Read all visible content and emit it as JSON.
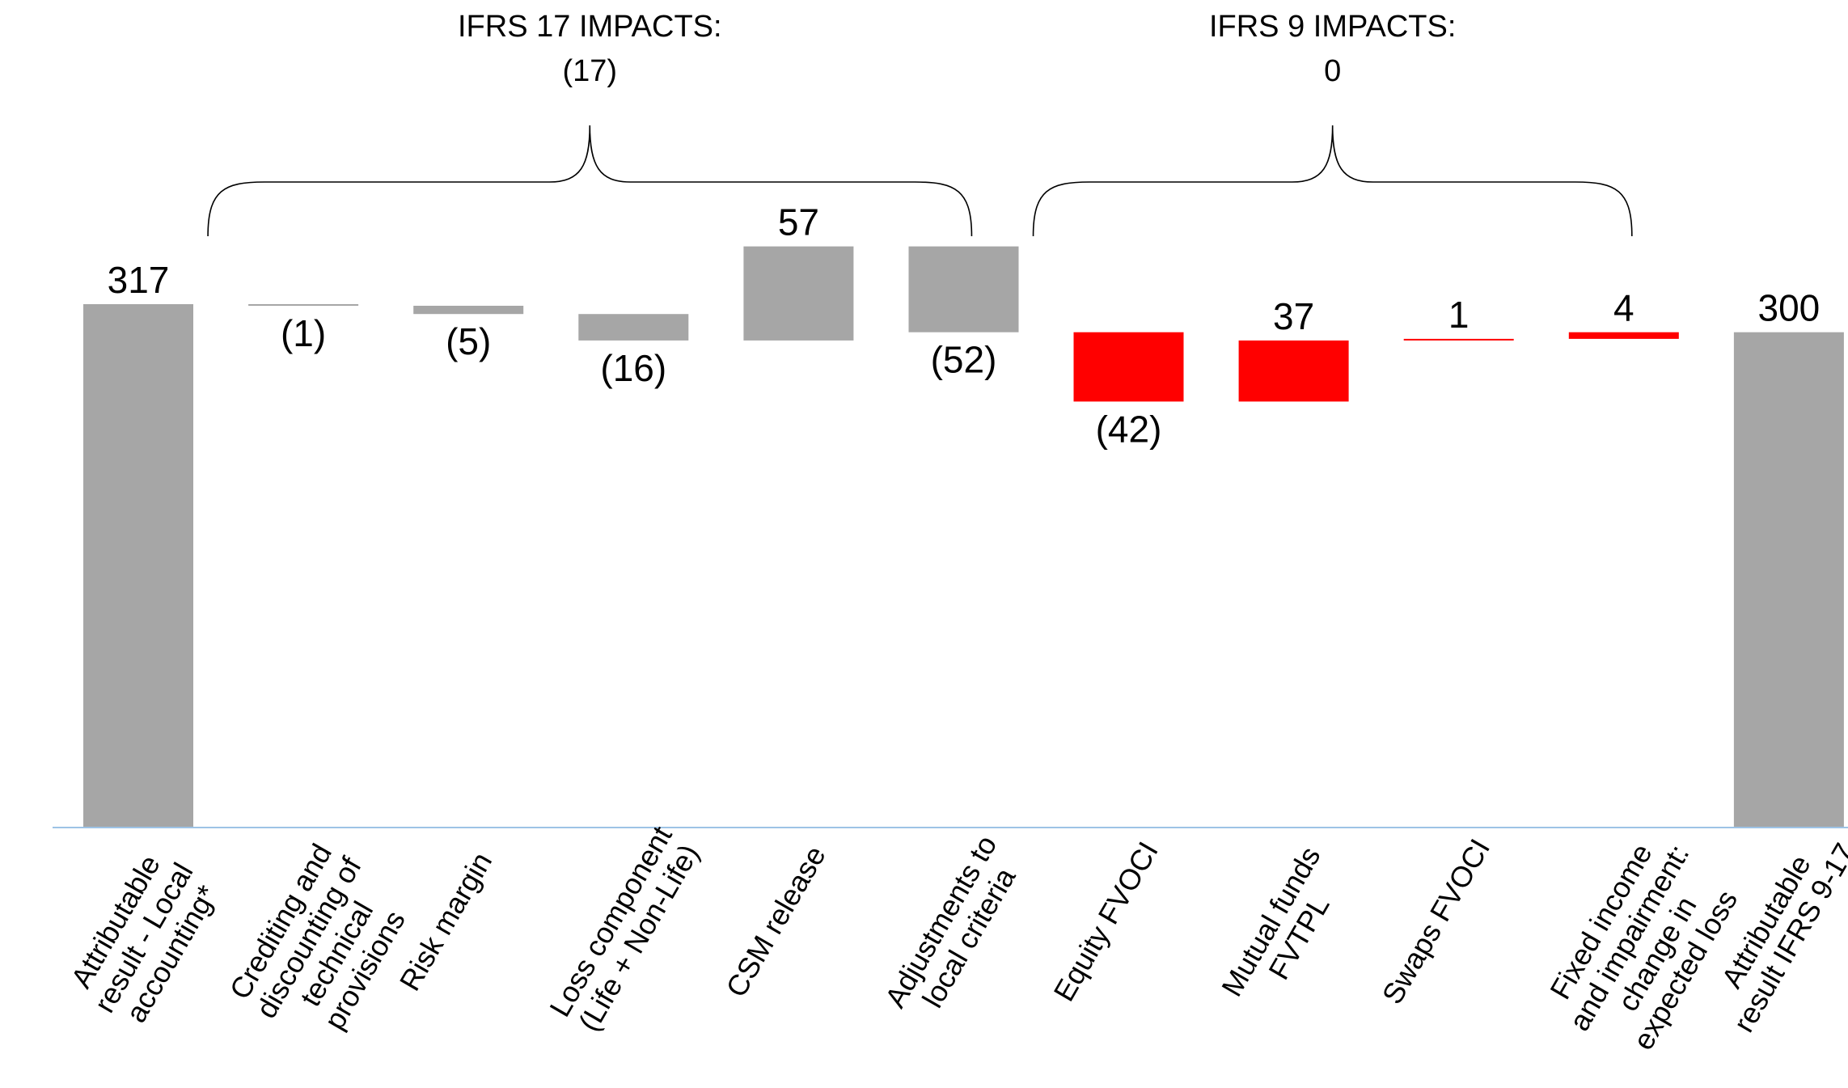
{
  "chart_data": {
    "type": "bar",
    "subtype": "waterfall",
    "title": "",
    "xlabel": "",
    "ylabel": "",
    "ylim": [
      0,
      330
    ],
    "grid": false,
    "legend": "none",
    "colors": {
      "total": "#a6a6a6",
      "ifrs17": "#a6a6a6",
      "ifrs9": "#ff0000",
      "baseline": "#9dc3e6"
    },
    "groups": [
      {
        "name": "IFRS 17 IMPACTS:",
        "value_label": "(17)",
        "from_index": 1,
        "to_index": 5
      },
      {
        "name": "IFRS 9 IMPACTS:",
        "value_label": "0",
        "from_index": 6,
        "to_index": 9
      }
    ],
    "categories": [
      "Attributable result - Local accounting*",
      "Crediting and discounting of technical provisions",
      "Risk margin",
      "Loss component (Life + Non-Life)",
      "CSM release",
      "Adjustments to local criteria",
      "Equity FVOCI",
      "Mutual funds FVTPL",
      "Swaps FVOCI",
      "Fixed income and impairment: change in expected loss",
      "Attributable result IFRS 9-17"
    ],
    "category_lines": [
      [
        "Attributable",
        "result - Local",
        "accounting*"
      ],
      [
        "Crediting and",
        "discounting of",
        "technical",
        "provisions"
      ],
      [
        "Risk margin"
      ],
      [
        "Loss component",
        "(Life + Non-Life)"
      ],
      [
        "CSM release"
      ],
      [
        "Adjustments to",
        "local criteria"
      ],
      [
        "Equity FVOCI"
      ],
      [
        "Mutual funds",
        "FVTPL"
      ],
      [
        "Swaps FVOCI"
      ],
      [
        "Fixed income",
        "and impairment:",
        "change in",
        "expected loss"
      ],
      [
        "Attributable",
        "result IFRS 9-17"
      ]
    ],
    "bars": [
      {
        "kind": "total",
        "start": 0,
        "end": 317,
        "label": "317"
      },
      {
        "kind": "ifrs17",
        "start": 317,
        "end": 316,
        "label": "(1)"
      },
      {
        "kind": "ifrs17",
        "start": 316,
        "end": 311,
        "label": "(5)"
      },
      {
        "kind": "ifrs17",
        "start": 311,
        "end": 295,
        "label": "(16)"
      },
      {
        "kind": "ifrs17",
        "start": 295,
        "end": 352,
        "label": "57"
      },
      {
        "kind": "ifrs17",
        "start": 352,
        "end": 300,
        "label": "(52)"
      },
      {
        "kind": "ifrs9",
        "start": 300,
        "end": 258,
        "label": "(42)"
      },
      {
        "kind": "ifrs9",
        "start": 258,
        "end": 295,
        "label": "37"
      },
      {
        "kind": "ifrs9",
        "start": 295,
        "end": 296,
        "label": "1"
      },
      {
        "kind": "ifrs9",
        "start": 296,
        "end": 300,
        "label": "4"
      },
      {
        "kind": "total",
        "start": 0,
        "end": 300,
        "label": "300"
      }
    ]
  }
}
